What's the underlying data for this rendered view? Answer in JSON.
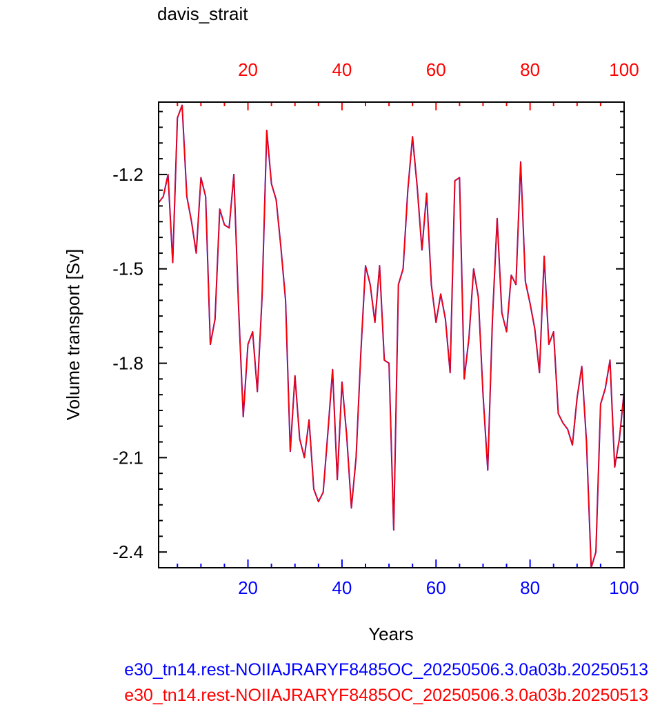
{
  "chart_data": {
    "type": "line",
    "title": "davis_strait",
    "xlabel": "Years",
    "ylabel": "Volume transport [Sv]",
    "xlim": [
      1,
      100
    ],
    "ylim": [
      -2.45,
      -0.97
    ],
    "x_ticks": [
      20,
      40,
      60,
      80,
      100
    ],
    "x_tick_labels": [
      "20",
      "40",
      "60",
      "80",
      "100"
    ],
    "y_ticks": [
      -1.2,
      -1.5,
      -1.8,
      -2.1,
      -2.4
    ],
    "y_tick_labels": [
      "-1.2",
      "-1.5",
      "-1.8",
      "-2.1",
      "-2.4"
    ],
    "grid": false,
    "series": [
      {
        "name": "e30_tn14.rest-NOIIAJRARYF8485OC_20250506.3.0a03b.20250513",
        "color": "#0000ff",
        "x": [
          1,
          2,
          3,
          4,
          5,
          6,
          7,
          8,
          9,
          10,
          11,
          12,
          13,
          14,
          15,
          16,
          17,
          18,
          19,
          20,
          21,
          22,
          23,
          24,
          25,
          26,
          27,
          28,
          29,
          30,
          31,
          32,
          33,
          34,
          35,
          36,
          37,
          38,
          39,
          40,
          41,
          42,
          43,
          44,
          45,
          46,
          47,
          48,
          49,
          50,
          51,
          52,
          53,
          54,
          55,
          56,
          57,
          58,
          59,
          60,
          61,
          62,
          63,
          64,
          65,
          66,
          67,
          68,
          69,
          70,
          71,
          72,
          73,
          74,
          75,
          76,
          77,
          78,
          79,
          80,
          81,
          82,
          83,
          84,
          85,
          86,
          87,
          88,
          89,
          90,
          91,
          92,
          93,
          94,
          95,
          96,
          97,
          98,
          99,
          100
        ],
        "values": [
          -1.29,
          -1.27,
          -1.2,
          -1.48,
          -1.02,
          -0.98,
          -1.27,
          -1.35,
          -1.45,
          -1.21,
          -1.27,
          -1.74,
          -1.66,
          -1.31,
          -1.36,
          -1.37,
          -1.2,
          -1.62,
          -1.97,
          -1.74,
          -1.7,
          -1.89,
          -1.59,
          -1.06,
          -1.23,
          -1.28,
          -1.43,
          -1.6,
          -2.08,
          -1.84,
          -2.04,
          -2.1,
          -1.98,
          -2.2,
          -2.24,
          -2.21,
          -2.02,
          -1.82,
          -2.17,
          -1.86,
          -2.03,
          -2.26,
          -2.1,
          -1.77,
          -1.49,
          -1.55,
          -1.67,
          -1.49,
          -1.79,
          -1.8,
          -2.33,
          -1.55,
          -1.5,
          -1.25,
          -1.08,
          -1.24,
          -1.44,
          -1.26,
          -1.55,
          -1.67,
          -1.58,
          -1.66,
          -1.83,
          -1.22,
          -1.21,
          -1.85,
          -1.72,
          -1.5,
          -1.59,
          -1.9,
          -2.14,
          -1.66,
          -1.34,
          -1.64,
          -1.7,
          -1.52,
          -1.55,
          -1.16,
          -1.54,
          -1.61,
          -1.69,
          -1.83,
          -1.46,
          -1.74,
          -1.7,
          -1.96,
          -1.99,
          -2.01,
          -2.06,
          -1.91,
          -1.81,
          -2.05,
          -2.45,
          -2.4,
          -1.93,
          -1.88,
          -1.79,
          -2.13,
          -2.04,
          -1.89
        ]
      },
      {
        "name": "e30_tn14.rest-NOIIAJRARYF8485OC_20250506.3.0a03b.20250513",
        "color": "#ff0000",
        "x": [
          1,
          2,
          3,
          4,
          5,
          6,
          7,
          8,
          9,
          10,
          11,
          12,
          13,
          14,
          15,
          16,
          17,
          18,
          19,
          20,
          21,
          22,
          23,
          24,
          25,
          26,
          27,
          28,
          29,
          30,
          31,
          32,
          33,
          34,
          35,
          36,
          37,
          38,
          39,
          40,
          41,
          42,
          43,
          44,
          45,
          46,
          47,
          48,
          49,
          50,
          51,
          52,
          53,
          54,
          55,
          56,
          57,
          58,
          59,
          60,
          61,
          62,
          63,
          64,
          65,
          66,
          67,
          68,
          69,
          70,
          71,
          72,
          73,
          74,
          75,
          76,
          77,
          78,
          79,
          80,
          81,
          82,
          83,
          84,
          85,
          86,
          87,
          88,
          89,
          90,
          91,
          92,
          93,
          94,
          95,
          96,
          97,
          98,
          99,
          100
        ],
        "values": [
          -1.29,
          -1.27,
          -1.2,
          -1.48,
          -1.02,
          -0.98,
          -1.27,
          -1.35,
          -1.45,
          -1.21,
          -1.27,
          -1.74,
          -1.66,
          -1.31,
          -1.36,
          -1.37,
          -1.2,
          -1.62,
          -1.97,
          -1.74,
          -1.7,
          -1.89,
          -1.59,
          -1.06,
          -1.23,
          -1.28,
          -1.43,
          -1.6,
          -2.08,
          -1.84,
          -2.04,
          -2.1,
          -1.98,
          -2.2,
          -2.24,
          -2.21,
          -2.02,
          -1.82,
          -2.17,
          -1.86,
          -2.03,
          -2.26,
          -2.1,
          -1.77,
          -1.49,
          -1.55,
          -1.67,
          -1.49,
          -1.79,
          -1.8,
          -2.33,
          -1.55,
          -1.5,
          -1.25,
          -1.08,
          -1.24,
          -1.44,
          -1.26,
          -1.55,
          -1.67,
          -1.58,
          -1.66,
          -1.83,
          -1.22,
          -1.21,
          -1.85,
          -1.72,
          -1.5,
          -1.59,
          -1.9,
          -2.14,
          -1.66,
          -1.34,
          -1.64,
          -1.7,
          -1.52,
          -1.55,
          -1.16,
          -1.54,
          -1.61,
          -1.69,
          -1.83,
          -1.46,
          -1.74,
          -1.7,
          -1.96,
          -1.99,
          -2.01,
          -2.06,
          -1.91,
          -1.81,
          -2.05,
          -2.45,
          -2.4,
          -1.93,
          -1.88,
          -1.79,
          -2.13,
          -2.04,
          -1.89
        ]
      }
    ],
    "legend": {
      "placement": "bottom",
      "entries": [
        {
          "label": "e30_tn14.rest-NOIIAJRARYF8485OC_20250506.3.0a03b.20250513",
          "color": "#0000ff"
        },
        {
          "label": "e30_tn14.rest-NOIIAJRARYF8485OC_20250506.3.0a03b.20250513",
          "color": "#ff0000"
        }
      ]
    },
    "axis_colors": {
      "bottom_ticks": "#0000ff",
      "top_ticks": "#ff0000",
      "frame": "#000000"
    }
  }
}
